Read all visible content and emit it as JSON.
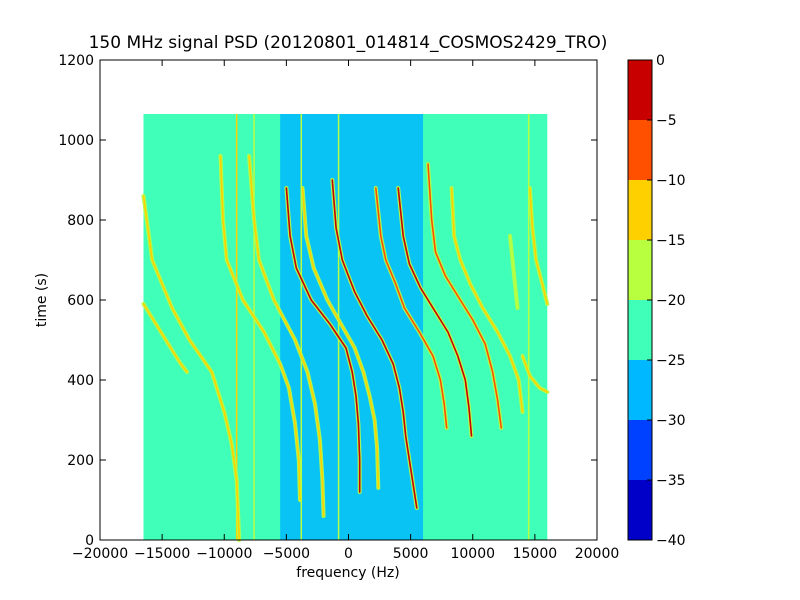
{
  "chart_data": {
    "type": "heatmap",
    "title": "150 MHz signal PSD (20120801_014814_COSMOS2429_TRO)",
    "xlabel": "frequency (Hz)",
    "ylabel": "time (s)",
    "xlim": [
      -20000,
      20000
    ],
    "ylim": [
      0,
      1200
    ],
    "xticks": [
      "−20000",
      "−15000",
      "−10000",
      "−5000",
      "0",
      "5000",
      "10000",
      "15000",
      "20000"
    ],
    "xtick_values": [
      -20000,
      -15000,
      -10000,
      -5000,
      0,
      5000,
      10000,
      15000,
      20000
    ],
    "yticks": [
      "0",
      "200",
      "400",
      "600",
      "800",
      "1000",
      "1200"
    ],
    "ytick_values": [
      0,
      200,
      400,
      600,
      800,
      1000,
      1200
    ],
    "data_extent": {
      "x": [
        -16500,
        16000
      ],
      "y": [
        0,
        1065
      ]
    },
    "background_level": -22.5,
    "noise_band": {
      "x": [
        -5500,
        6000
      ],
      "level": -27.5
    },
    "colorbar": {
      "levels": [
        -40,
        -35,
        -30,
        -25,
        -20,
        -15,
        -10,
        -5,
        0
      ],
      "labels": [
        "−40",
        "−35",
        "−30",
        "−25",
        "−20",
        "−15",
        "−10",
        "−5",
        "0"
      ],
      "colors": [
        "#0000c8",
        "#0040ff",
        "#00b8ff",
        "#40ffb8",
        "#b8ff40",
        "#ffd000",
        "#ff5000",
        "#c80000"
      ]
    },
    "vertical_lines": [
      {
        "x": -9000,
        "y": [
          0,
          1065
        ],
        "level": -12
      },
      {
        "x": -7600,
        "y": [
          0,
          1065
        ],
        "level": -18
      },
      {
        "x": -3800,
        "y": [
          0,
          1065
        ],
        "level": -18
      },
      {
        "x": -800,
        "y": [
          0,
          1065
        ],
        "level": -18
      },
      {
        "x": 14500,
        "y": [
          0,
          1065
        ],
        "level": -18
      }
    ],
    "series": [
      {
        "level": -15,
        "points": [
          [
            -16500,
            860
          ],
          [
            -15800,
            700
          ],
          [
            -14200,
            580
          ],
          [
            -12800,
            500
          ],
          [
            -11000,
            420
          ],
          [
            -10000,
            320
          ],
          [
            -9400,
            240
          ],
          [
            -9000,
            150
          ],
          [
            -8900,
            80
          ],
          [
            -8800,
            0
          ]
        ]
      },
      {
        "level": -15,
        "points": [
          [
            -16500,
            590
          ],
          [
            -15500,
            540
          ],
          [
            -14500,
            490
          ],
          [
            -13500,
            440
          ],
          [
            -13000,
            420
          ]
        ]
      },
      {
        "level": -15,
        "points": [
          [
            -10300,
            960
          ],
          [
            -10100,
            800
          ],
          [
            -9800,
            700
          ],
          [
            -8500,
            600
          ],
          [
            -6800,
            520
          ],
          [
            -5500,
            440
          ],
          [
            -4800,
            380
          ],
          [
            -4300,
            290
          ],
          [
            -4000,
            200
          ],
          [
            -3900,
            100
          ]
        ]
      },
      {
        "level": -15,
        "points": [
          [
            -8000,
            960
          ],
          [
            -7600,
            800
          ],
          [
            -7200,
            700
          ],
          [
            -6000,
            600
          ],
          [
            -4300,
            500
          ],
          [
            -3300,
            420
          ],
          [
            -2700,
            340
          ],
          [
            -2300,
            250
          ],
          [
            -2100,
            150
          ],
          [
            -2000,
            60
          ]
        ]
      },
      {
        "level": -5,
        "points": [
          [
            -5000,
            880
          ],
          [
            -4700,
            760
          ],
          [
            -4200,
            680
          ],
          [
            -3000,
            600
          ],
          [
            -1500,
            540
          ],
          [
            -200,
            480
          ],
          [
            300,
            420
          ],
          [
            600,
            360
          ],
          [
            800,
            290
          ],
          [
            900,
            200
          ],
          [
            900,
            120
          ]
        ]
      },
      {
        "level": -15,
        "points": [
          [
            -3700,
            880
          ],
          [
            -3400,
            760
          ],
          [
            -2800,
            680
          ],
          [
            -1700,
            600
          ],
          [
            -600,
            540
          ],
          [
            500,
            480
          ],
          [
            1200,
            420
          ],
          [
            1700,
            360
          ],
          [
            2100,
            300
          ],
          [
            2300,
            230
          ],
          [
            2400,
            130
          ]
        ]
      },
      {
        "level": -5,
        "points": [
          [
            -1300,
            900
          ],
          [
            -1000,
            780
          ],
          [
            -500,
            700
          ],
          [
            500,
            620
          ],
          [
            1500,
            560
          ],
          [
            2700,
            500
          ],
          [
            3600,
            440
          ],
          [
            4100,
            380
          ],
          [
            4400,
            320
          ],
          [
            4600,
            260
          ],
          [
            5000,
            180
          ],
          [
            5500,
            80
          ]
        ]
      },
      {
        "level": -10,
        "points": [
          [
            2200,
            880
          ],
          [
            2600,
            760
          ],
          [
            3000,
            700
          ],
          [
            3800,
            640
          ],
          [
            4500,
            580
          ],
          [
            5700,
            520
          ],
          [
            6800,
            460
          ],
          [
            7400,
            400
          ],
          [
            7700,
            340
          ],
          [
            7900,
            280
          ]
        ]
      },
      {
        "level": -5,
        "points": [
          [
            4000,
            880
          ],
          [
            4400,
            760
          ],
          [
            4900,
            690
          ],
          [
            5800,
            630
          ],
          [
            6800,
            580
          ],
          [
            8000,
            520
          ],
          [
            8800,
            460
          ],
          [
            9400,
            400
          ],
          [
            9700,
            330
          ],
          [
            9900,
            260
          ]
        ]
      },
      {
        "level": -10,
        "points": [
          [
            6400,
            940
          ],
          [
            6700,
            800
          ],
          [
            7000,
            720
          ],
          [
            7800,
            660
          ],
          [
            9000,
            600
          ],
          [
            10000,
            550
          ],
          [
            11000,
            490
          ],
          [
            11600,
            420
          ],
          [
            12000,
            350
          ],
          [
            12300,
            280
          ]
        ]
      },
      {
        "level": -15,
        "points": [
          [
            8300,
            880
          ],
          [
            8500,
            760
          ],
          [
            9000,
            700
          ],
          [
            9800,
            640
          ],
          [
            10800,
            580
          ],
          [
            12000,
            520
          ],
          [
            13000,
            460
          ],
          [
            13700,
            400
          ],
          [
            14000,
            320
          ]
        ]
      },
      {
        "level": -15,
        "points": [
          [
            14600,
            880
          ],
          [
            14800,
            780
          ],
          [
            15100,
            700
          ],
          [
            15600,
            640
          ],
          [
            16000,
            590
          ]
        ]
      },
      {
        "level": -18,
        "points": [
          [
            13000,
            760
          ],
          [
            13400,
            640
          ],
          [
            13600,
            580
          ]
        ]
      },
      {
        "level": -15,
        "points": [
          [
            14000,
            460
          ],
          [
            14600,
            410
          ],
          [
            15400,
            380
          ],
          [
            16000,
            370
          ]
        ]
      }
    ]
  }
}
